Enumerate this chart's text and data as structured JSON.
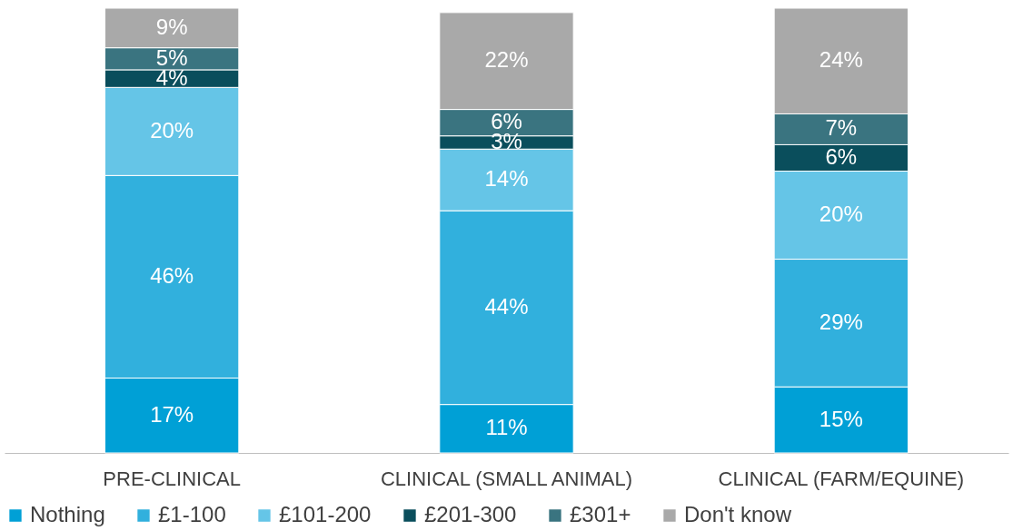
{
  "chart_data": {
    "type": "bar",
    "stacked": true,
    "legend": "bottom",
    "grid": false,
    "categories": [
      "PRE-CLINICAL",
      "CLINICAL (SMALL ANIMAL)",
      "CLINICAL (FARM/EQUINE)"
    ],
    "series": [
      {
        "name": "Nothing",
        "color": "#00a0d6",
        "values": [
          17,
          11,
          15
        ],
        "value_labels": [
          "17%",
          "11%",
          "15%"
        ]
      },
      {
        "name": "£1-100",
        "color": "#31b0dd",
        "values": [
          46,
          44,
          29
        ],
        "value_labels": [
          "46%",
          "44%",
          "29%"
        ]
      },
      {
        "name": "£101-200",
        "color": "#65c5e7",
        "values": [
          20,
          14,
          20
        ],
        "value_labels": [
          "20%",
          "14%",
          "20%"
        ]
      },
      {
        "name": "£201-300",
        "color": "#0a4e5c",
        "values": [
          4,
          3,
          6
        ],
        "value_labels": [
          "4%",
          "3%",
          "6%"
        ]
      },
      {
        "name": "£301+",
        "color": "#3a7480",
        "values": [
          5,
          6,
          7
        ],
        "value_labels": [
          "5%",
          "6%",
          "7%"
        ]
      },
      {
        "name": "Don't know",
        "color": "#a9a9a9",
        "values": [
          9,
          22,
          24
        ],
        "value_labels": [
          "9%",
          "22%",
          "24%"
        ]
      }
    ]
  }
}
